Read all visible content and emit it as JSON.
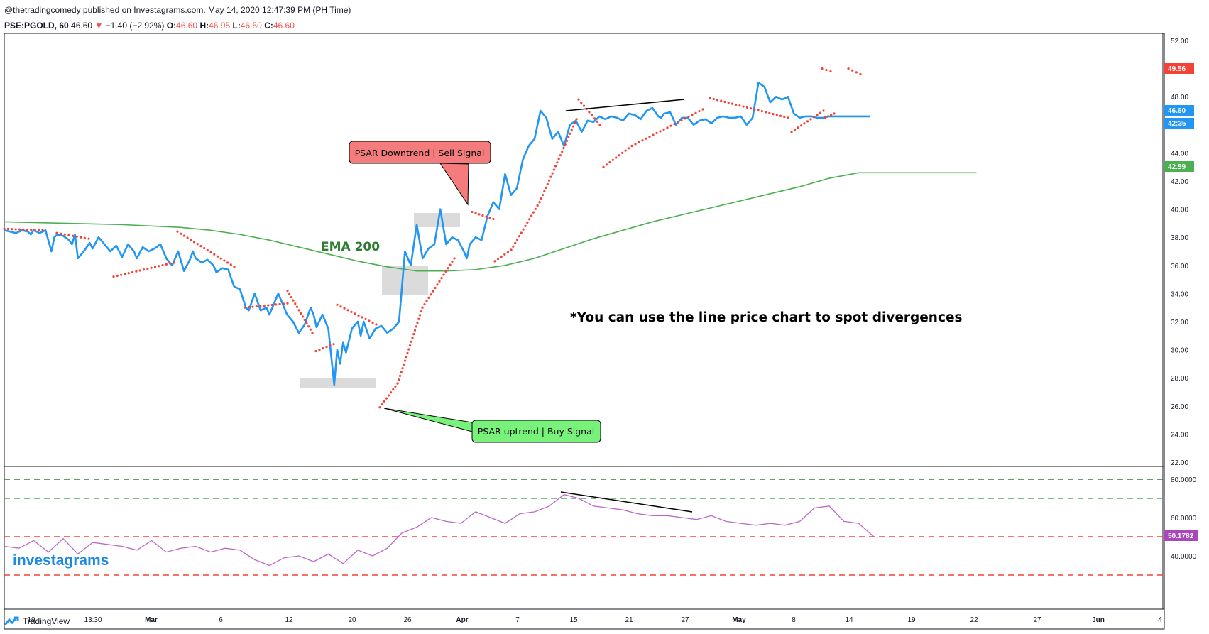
{
  "header": {
    "published_line": "@thetradingcomedy published on Investagrams.com, May 14, 2020 12:47:39 PM (PH Time)",
    "symbol": "PSE:PGOLD, 60",
    "last": "46.60",
    "change": "−1.40 (−2.92%)",
    "o_label": "O:",
    "o_val": "46.60",
    "h_label": "H:",
    "h_val": "46.95",
    "l_label": "L:",
    "l_val": "46.50",
    "c_label": "C:",
    "c_val": "46.60"
  },
  "brand": {
    "watermark": "investagrams",
    "footer": "TradingView"
  },
  "colors": {
    "price": "#2196f3",
    "psar": "#f44336",
    "ema": "#4caf50",
    "rsi": "#ba68c8",
    "sell_box": "#f47c7c",
    "buy_box": "#79f27c"
  },
  "chart_data": [
    {
      "type": "line",
      "title": "",
      "x_ticks": [
        "19",
        "13:30",
        "Mar",
        "6",
        "12",
        "20",
        "26",
        "Apr",
        "7",
        "15",
        "21",
        "27",
        "May",
        "8",
        "14",
        "19",
        "22",
        "27",
        "Jun",
        "4"
      ],
      "y_ticks": [
        "52.00",
        "50.00",
        "48.00",
        "46.00",
        "44.00",
        "42.00",
        "40.00",
        "38.00",
        "36.00",
        "34.00",
        "32.00",
        "30.00",
        "28.00",
        "26.00",
        "24.00",
        "22.00"
      ],
      "ylim": [
        22,
        52
      ],
      "series": [
        {
          "name": "",
          "x": [
            0,
            2,
            4,
            6,
            8,
            9,
            10,
            12,
            14,
            16,
            17,
            18,
            20,
            22,
            23,
            24,
            25,
            27,
            29,
            30,
            32,
            34,
            36,
            38,
            40,
            42,
            44,
            45,
            47,
            49,
            51,
            53,
            55,
            57,
            59,
            61,
            63,
            64,
            65,
            67,
            69,
            71,
            72,
            74,
            76,
            78,
            80,
            82,
            83,
            85,
            87,
            89,
            90,
            91,
            92,
            93,
            94,
            96,
            98,
            100,
            102,
            104,
            105,
            106,
            108,
            110,
            112,
            113,
            114,
            115,
            116,
            118,
            120,
            121,
            122,
            124,
            126,
            128,
            130,
            132,
            134,
            136,
            138,
            140,
            142,
            144,
            146,
            148,
            150,
            152,
            154,
            156,
            157,
            158,
            160,
            162,
            164,
            166,
            168,
            170,
            172,
            174,
            176,
            178,
            180,
            182,
            184,
            186,
            188,
            190,
            192,
            194,
            196,
            198,
            200,
            202,
            204,
            206,
            208,
            210,
            212,
            214,
            216,
            218,
            220,
            222,
            223,
            224,
            226,
            228,
            230,
            232,
            234,
            236,
            238,
            240,
            242,
            244,
            246,
            248,
            250,
            252,
            254,
            256,
            258,
            260,
            262,
            264,
            266,
            268,
            270,
            272,
            274,
            276,
            278,
            280,
            282,
            284,
            286,
            288,
            290,
            292,
            294
          ],
          "values": [
            38.5,
            38.4,
            38.3,
            38.5,
            38.4,
            38.2,
            38.5,
            38.3,
            38.5,
            37.0,
            38.0,
            38.2,
            38.1,
            37.8,
            37.5,
            38.2,
            36.5,
            37.0,
            37.6,
            37.2,
            38.0,
            37.5,
            37.0,
            37.4,
            36.6,
            37.5,
            37.0,
            36.5,
            37.3,
            37.0,
            37.2,
            37.5,
            36.5,
            36.0,
            37.0,
            35.6,
            36.4,
            37.0,
            36.5,
            36.2,
            36.4,
            36.0,
            35.5,
            35.8,
            35.7,
            34.5,
            34.3,
            33.0,
            32.8,
            34.0,
            32.8,
            33.0,
            32.5,
            33.0,
            33.5,
            34.0,
            33.5,
            32.5,
            32.0,
            31.2,
            31.8,
            33.0,
            32.5,
            31.6,
            32.5,
            31.5,
            27.5,
            30.0,
            29.0,
            30.5,
            29.8,
            31.5,
            32.0,
            31.0,
            32.0,
            30.8,
            31.5,
            31.7,
            31.2,
            31.5,
            32.0,
            37.0,
            36.0,
            38.9,
            36.5,
            37.2,
            37.5,
            40.0,
            37.5,
            38.0,
            37.8,
            37.0,
            36.5,
            37.5,
            38.0,
            37.8,
            39.5,
            40.5,
            40.0,
            42.5,
            41.0,
            41.5,
            43.5,
            44.5,
            45.0,
            47.0,
            46.5,
            45.0,
            45.5,
            44.5,
            46.0,
            46.3,
            45.5,
            46.3,
            46.2,
            46.6,
            46.4,
            46.6,
            46.5,
            46.3,
            46.8,
            46.7,
            46.4,
            47.0,
            47.2,
            46.6,
            46.5,
            46.8,
            46.9,
            46.0,
            46.5,
            46.5,
            46.0,
            46.3,
            46.4,
            46.1,
            46.5,
            46.6,
            46.5,
            46.5,
            46.6,
            46.0,
            46.5,
            49.0,
            48.7,
            47.6,
            48.0,
            47.8,
            48.0,
            46.8,
            46.5,
            46.6,
            46.6,
            46.5,
            46.5,
            46.6,
            46.6,
            46.6,
            46.6,
            46.6,
            46.6,
            46.6,
            46.6
          ]
        },
        {
          "name": "EMA 200",
          "x": [
            0,
            20,
            40,
            60,
            70,
            80,
            90,
            100,
            110,
            120,
            130,
            140,
            150,
            160,
            170,
            180,
            190,
            200,
            210,
            220,
            230,
            240,
            250,
            260,
            270,
            280,
            290,
            300,
            310,
            320,
            330
          ],
          "values": [
            39.1,
            39.0,
            38.9,
            38.7,
            38.5,
            38.2,
            37.8,
            37.3,
            36.8,
            36.3,
            35.9,
            35.6,
            35.6,
            35.7,
            36.0,
            36.5,
            37.2,
            37.9,
            38.5,
            39.1,
            39.6,
            40.1,
            40.6,
            41.1,
            41.6,
            42.2,
            42.59,
            42.59,
            42.59,
            42.59,
            42.59
          ]
        }
      ],
      "annotations": [
        {
          "text": "EMA 200"
        },
        {
          "text": "PSAR Downtrend | Sell Signal"
        },
        {
          "text": "PSAR uptrend | Buy Signal"
        },
        {
          "text": "*You can use the line price chart to spot divergences"
        }
      ],
      "price_labels": [
        "49.56",
        "46.60",
        "42:35",
        "42.59"
      ]
    },
    {
      "type": "line",
      "title": "",
      "y_ticks": [
        "80.0000",
        "60.0000",
        "40.0000"
      ],
      "ylim": [
        28,
        82
      ],
      "levels": [
        80,
        70,
        50,
        30
      ],
      "series": [
        {
          "name": "",
          "x": [
            0,
            5,
            10,
            15,
            20,
            25,
            30,
            35,
            40,
            45,
            50,
            55,
            60,
            65,
            70,
            75,
            80,
            85,
            90,
            95,
            100,
            105,
            110,
            115,
            120,
            125,
            130,
            135,
            140,
            145,
            150,
            155,
            160,
            165,
            170,
            175,
            180,
            185,
            190,
            195,
            200,
            205,
            210,
            215,
            220,
            225,
            230,
            235,
            240,
            245,
            250,
            255,
            260,
            265,
            270,
            275,
            280,
            285,
            290,
            295
          ],
          "values": [
            45,
            44,
            48,
            42,
            49,
            41,
            47,
            46,
            45,
            43,
            48,
            42,
            44,
            45,
            42,
            44,
            43,
            38,
            35,
            39,
            40,
            37,
            41,
            36,
            43,
            40,
            44,
            52,
            55,
            60,
            58,
            57,
            63,
            60,
            57,
            62,
            63,
            66,
            72,
            70,
            66,
            65,
            64,
            62,
            61,
            61,
            60,
            59,
            61,
            58,
            57,
            56,
            57,
            56,
            58,
            65,
            66,
            58,
            57,
            50.18
          ]
        }
      ],
      "price_labels": [
        "50.1782"
      ]
    }
  ]
}
